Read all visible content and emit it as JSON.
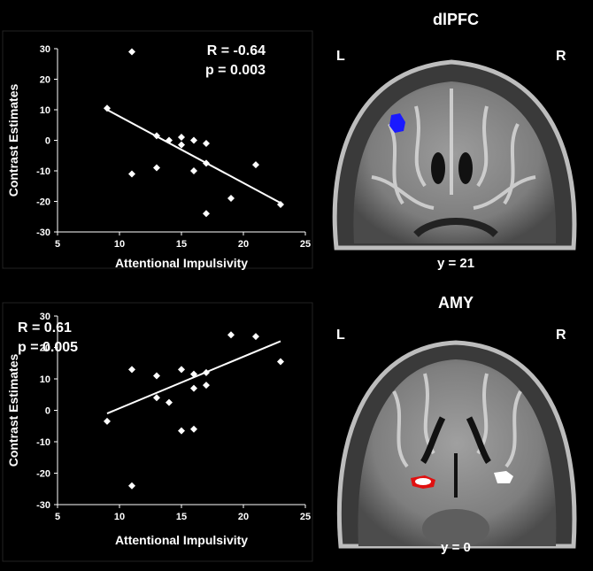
{
  "chart_data": [
    {
      "type": "scatter",
      "xlabel": "Attentional Impulsivity",
      "ylabel": "Contrast Estimates",
      "xlim": [
        5,
        25
      ],
      "ylim": [
        -30,
        30
      ],
      "xticks": [
        "5",
        "10",
        "15",
        "20",
        "25"
      ],
      "yticks": [
        "30",
        "20",
        "10",
        "0",
        "-10",
        "-20",
        "-30"
      ],
      "annotation": [
        "R = -0.64",
        "p = 0.003"
      ],
      "points": [
        {
          "x": 9,
          "y": 10.5
        },
        {
          "x": 11,
          "y": 29
        },
        {
          "x": 11,
          "y": -11
        },
        {
          "x": 13,
          "y": 1.5
        },
        {
          "x": 13,
          "y": -9
        },
        {
          "x": 14,
          "y": 0
        },
        {
          "x": 15,
          "y": 1
        },
        {
          "x": 15,
          "y": -1.5
        },
        {
          "x": 16,
          "y": 0
        },
        {
          "x": 16,
          "y": -10
        },
        {
          "x": 17,
          "y": -1
        },
        {
          "x": 17,
          "y": -7.5
        },
        {
          "x": 17,
          "y": -24
        },
        {
          "x": 19,
          "y": -19
        },
        {
          "x": 21,
          "y": -8
        },
        {
          "x": 23,
          "y": -21
        }
      ],
      "fit": {
        "x": [
          9,
          23
        ],
        "y": [
          10,
          -20.5
        ]
      }
    },
    {
      "type": "scatter",
      "xlabel": "Attentional Impulsivity",
      "ylabel": "Contrast Estimates",
      "xlim": [
        5,
        25
      ],
      "ylim": [
        -30,
        30
      ],
      "xticks": [
        "5",
        "10",
        "15",
        "20",
        "25"
      ],
      "yticks": [
        "30",
        "20",
        "10",
        "0",
        "-10",
        "-20",
        "-30"
      ],
      "annotation": [
        "R = 0.61",
        "p = 0.005"
      ],
      "points": [
        {
          "x": 9,
          "y": -3.5
        },
        {
          "x": 11,
          "y": 13
        },
        {
          "x": 11,
          "y": -24
        },
        {
          "x": 13,
          "y": 11
        },
        {
          "x": 13,
          "y": 4
        },
        {
          "x": 14,
          "y": 2.5
        },
        {
          "x": 15,
          "y": 13
        },
        {
          "x": 15,
          "y": -6.5
        },
        {
          "x": 16,
          "y": 11.5
        },
        {
          "x": 16,
          "y": 7
        },
        {
          "x": 16,
          "y": -6
        },
        {
          "x": 17,
          "y": 12
        },
        {
          "x": 17,
          "y": 8
        },
        {
          "x": 19,
          "y": 24
        },
        {
          "x": 21,
          "y": 23.5
        },
        {
          "x": 23,
          "y": 15.5
        }
      ],
      "fit": {
        "x": [
          9,
          23
        ],
        "y": [
          -1,
          22
        ]
      }
    }
  ],
  "brains": [
    {
      "title": "dlPFC",
      "left": "L",
      "right": "R",
      "slice": "y = 21",
      "roi_color": "#1a1aff"
    },
    {
      "title": "AMY",
      "left": "L",
      "right": "R",
      "slice": "y = 0",
      "roi_colors": [
        "#e01010",
        "#ffffff"
      ]
    }
  ]
}
